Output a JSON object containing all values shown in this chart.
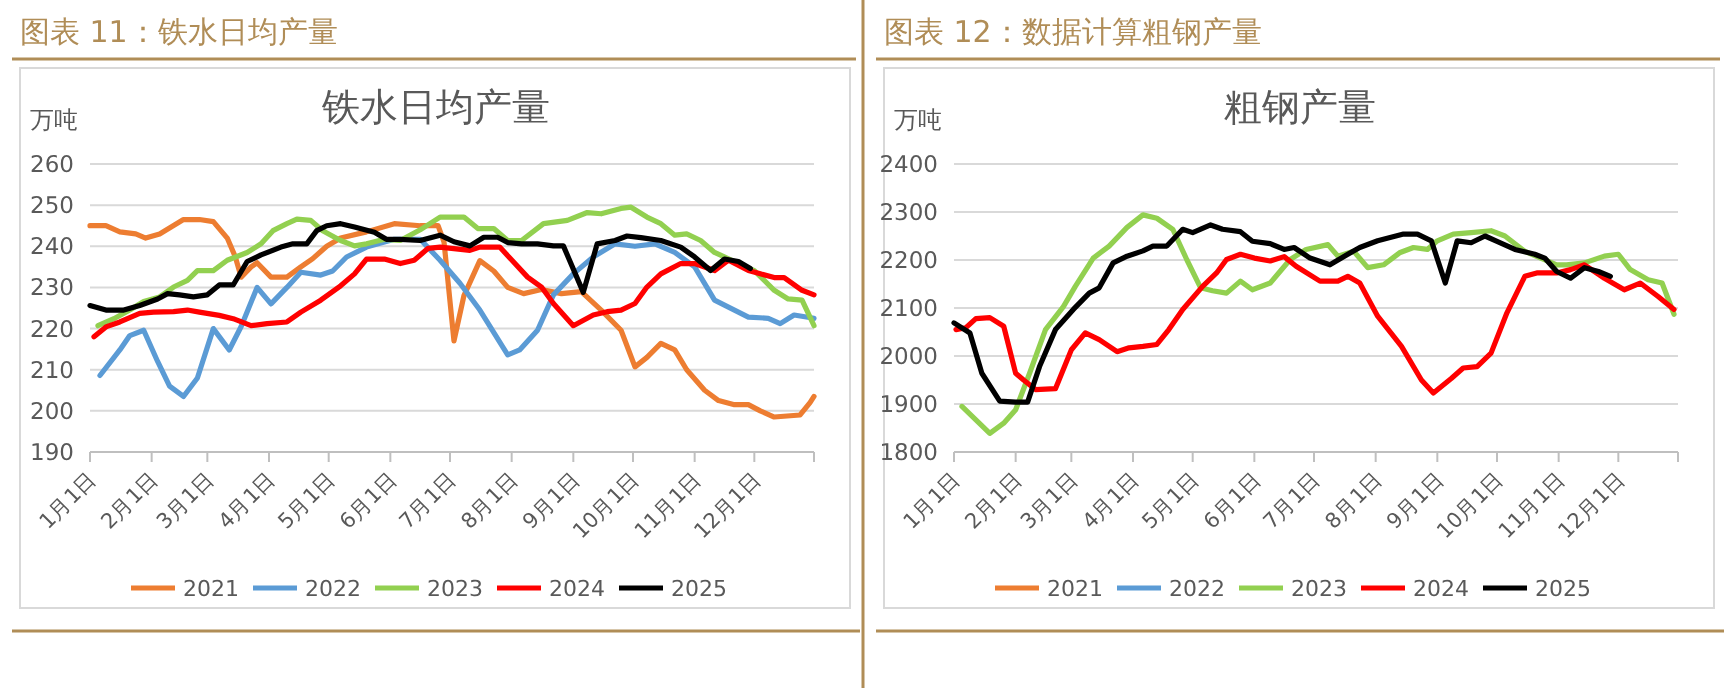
{
  "chart_data": [
    {
      "type": "line",
      "title": "图表 11：铁水日均产量",
      "subtitle": "铁水日均产量",
      "ylabel": "万吨",
      "xlim": [
        "--01-01",
        "--12-31"
      ],
      "xticks": [
        {
          "value": "--01-01",
          "label": "1月1日"
        },
        {
          "value": "--02-01",
          "label": "2月1日"
        },
        {
          "value": "--03-01",
          "label": "3月1日"
        },
        {
          "value": "--04-01",
          "label": "4月1日"
        },
        {
          "value": "--05-01",
          "label": "5月1日"
        },
        {
          "value": "--06-01",
          "label": "6月1日"
        },
        {
          "value": "--07-01",
          "label": "7月1日"
        },
        {
          "value": "--08-01",
          "label": "8月1日"
        },
        {
          "value": "--09-01",
          "label": "9月1日"
        },
        {
          "value": "--10-01",
          "label": "10月1日"
        },
        {
          "value": "--11-01",
          "label": "11月1日"
        },
        {
          "value": "--12-01",
          "label": "12月1日"
        }
      ],
      "ylim": [
        190,
        260
      ],
      "yticks": [
        190,
        200,
        210,
        220,
        230,
        240,
        250,
        260
      ],
      "grid": "y",
      "legend": "bottom",
      "marker": "none",
      "line_style": "solid",
      "series": [
        {
          "name": "2021",
          "color": "#ed7d31",
          "x": [
            "--01-01",
            "--01-09",
            "--01-16",
            "--01-24",
            "--01-29",
            "--02-05",
            "--02-17",
            "--02-25",
            "--03-04",
            "--03-11",
            "--03-15",
            "--03-18",
            "--03-23",
            "--03-26",
            "--04-02",
            "--04-10",
            "--04-17",
            "--04-23",
            "--04-30",
            "--05-07",
            "--05-20",
            "--06-03",
            "--06-16",
            "--06-25",
            "--06-28",
            "--07-03",
            "--07-08",
            "--07-16",
            "--07-23",
            "--07-30",
            "--08-07",
            "--08-16",
            "--08-26",
            "--09-05",
            "--09-15",
            "--09-25",
            "--10-02",
            "--10-08",
            "--10-15",
            "--10-22",
            "--10-28",
            "--11-06",
            "--11-13",
            "--11-21",
            "--11-28",
            "--12-04",
            "--12-11",
            "--12-24",
            "--12-29",
            "--12-31"
          ],
          "values": [
            245,
            245,
            243.5,
            243,
            242,
            243,
            246.5,
            246.5,
            246,
            242,
            237.5,
            232.5,
            235,
            236,
            232.5,
            232.5,
            235,
            237,
            240,
            242,
            243.5,
            245.5,
            245,
            245,
            241,
            217,
            228,
            236.5,
            234,
            230,
            228.5,
            229.5,
            228.5,
            229,
            224.5,
            219.6,
            210.7,
            213,
            216.4,
            214.8,
            210,
            205,
            202.5,
            201.5,
            201.5,
            200,
            198.5,
            199,
            202,
            203.5
          ]
        },
        {
          "name": "2022",
          "color": "#5b9bd5",
          "x": [
            "--01-06",
            "--01-16",
            "--01-21",
            "--01-28",
            "--02-04",
            "--02-10",
            "--02-17",
            "--02-24",
            "--03-04",
            "--03-12",
            "--03-18",
            "--03-26",
            "--04-02",
            "--04-10",
            "--04-17",
            "--04-27",
            "--05-03",
            "--05-10",
            "--05-20",
            "--06-03",
            "--06-16",
            "--06-26",
            "--07-06",
            "--07-16",
            "--07-30",
            "--08-05",
            "--08-14",
            "--08-22",
            "--09-01",
            "--09-11",
            "--09-22",
            "--10-02",
            "--10-12",
            "--10-22",
            "--11-01",
            "--11-11",
            "--11-21",
            "--11-28",
            "--12-08",
            "--12-14",
            "--12-21",
            "--12-31"
          ],
          "values": [
            208.6,
            214.8,
            218.3,
            219.6,
            212,
            206,
            203.5,
            208,
            220,
            214.8,
            220.5,
            230,
            226,
            230,
            233.7,
            233,
            234,
            237.4,
            239.8,
            241.7,
            241.7,
            236.6,
            231,
            224.5,
            213.6,
            214.8,
            219.6,
            228.2,
            233.3,
            237.4,
            240.6,
            240,
            240.6,
            238.5,
            235,
            226.9,
            224.5,
            222.8,
            222.5,
            221.2,
            223.3,
            222.5
          ]
        },
        {
          "name": "2023",
          "color": "#92d050",
          "x": [
            "--01-05",
            "--01-13",
            "--01-21",
            "--01-28",
            "--02-05",
            "--02-12",
            "--02-19",
            "--02-24",
            "--03-04",
            "--03-11",
            "--03-21",
            "--03-28",
            "--04-03",
            "--04-10",
            "--04-15",
            "--04-22",
            "--04-28",
            "--05-07",
            "--05-14",
            "--05-20",
            "--05-29",
            "--06-06",
            "--06-16",
            "--06-26",
            "--07-08",
            "--07-15",
            "--07-23",
            "--07-30",
            "--08-06",
            "--08-17",
            "--08-29",
            "--09-08",
            "--09-15",
            "--09-25",
            "--09-30",
            "--10-08",
            "--10-15",
            "--10-22",
            "--10-28",
            "--11-04",
            "--11-11",
            "--11-21",
            "--12-01",
            "--12-11",
            "--12-18",
            "--12-25",
            "--12-31"
          ],
          "values": [
            220.7,
            222.4,
            224.5,
            226.6,
            227.7,
            230.1,
            231.7,
            234.1,
            234.1,
            236.6,
            238.5,
            240.6,
            243.8,
            245.5,
            246.6,
            246.3,
            243.8,
            241.4,
            240.1,
            240.6,
            241.7,
            241.4,
            244,
            247.1,
            247.1,
            244.3,
            244.3,
            241.4,
            241.4,
            245.5,
            246.3,
            248.2,
            247.9,
            249.2,
            249.5,
            247.1,
            245.5,
            242.7,
            243,
            241.4,
            238.5,
            236.3,
            234.1,
            229.3,
            227.2,
            226.9,
            220.7
          ]
        },
        {
          "name": "2024",
          "color": "#ff0000",
          "x": [
            "--01-03",
            "--01-09",
            "--01-16",
            "--01-26",
            "--02-02",
            "--02-12",
            "--02-19",
            "--02-25",
            "--03-07",
            "--03-14",
            "--03-23",
            "--03-31",
            "--04-10",
            "--04-17",
            "--04-27",
            "--05-07",
            "--05-14",
            "--05-20",
            "--05-29",
            "--06-06",
            "--06-13",
            "--06-20",
            "--06-26",
            "--07-11",
            "--07-16",
            "--07-26",
            "--08-09",
            "--08-16",
            "--08-22",
            "--09-01",
            "--09-11",
            "--09-18",
            "--09-25",
            "--10-02",
            "--10-08",
            "--10-15",
            "--10-25",
            "--11-01",
            "--11-11",
            "--11-18",
            "--11-28",
            "--12-04",
            "--12-11",
            "--12-16",
            "--12-25",
            "--12-31"
          ],
          "values": [
            218,
            220.4,
            221.6,
            223.7,
            224,
            224.1,
            224.5,
            224,
            223.2,
            222.4,
            220.7,
            221.2,
            221.6,
            224,
            226.9,
            230.4,
            233.3,
            236.9,
            236.9,
            235.8,
            236.6,
            239.5,
            239.8,
            239,
            239.8,
            239.8,
            232.5,
            230.1,
            226.1,
            220.7,
            223.3,
            224.1,
            224.5,
            226.1,
            230.1,
            233.3,
            235.8,
            235.8,
            234.1,
            236.6,
            234.1,
            233.3,
            232.4,
            232.4,
            229.3,
            228.2
          ]
        },
        {
          "name": "2025",
          "color": "#000000",
          "x": [
            "--01-01",
            "--01-09",
            "--01-18",
            "--01-26",
            "--02-04",
            "--02-09",
            "--02-15",
            "--02-22",
            "--03-01",
            "--03-07",
            "--03-14",
            "--03-21",
            "--03-28",
            "--04-07",
            "--04-13",
            "--04-20",
            "--04-25",
            "--04-30",
            "--05-07",
            "--05-14",
            "--05-24",
            "--05-30",
            "--06-06",
            "--06-16",
            "--06-26",
            "--07-03",
            "--07-11",
            "--07-18",
            "--07-25",
            "--07-30",
            "--08-06",
            "--08-14",
            "--08-22",
            "--08-27",
            "--09-06",
            "--09-13",
            "--09-22",
            "--09-28",
            "--10-05",
            "--10-15",
            "--10-25",
            "--11-01",
            "--11-09",
            "--11-16",
            "--11-23",
            "--11-29"
          ],
          "values": [
            225.6,
            224.5,
            224.5,
            225.6,
            227.2,
            228.5,
            228.2,
            227.7,
            228.2,
            230.6,
            230.6,
            236.3,
            237.9,
            239.8,
            240.6,
            240.6,
            243.8,
            245,
            245.5,
            244.7,
            243.4,
            241.7,
            241.7,
            241.4,
            242.7,
            241.1,
            240.1,
            242.2,
            242.2,
            240.9,
            240.6,
            240.6,
            240.1,
            240.1,
            228.8,
            240.6,
            241.4,
            242.5,
            242.1,
            241.4,
            239.8,
            237.4,
            234.1,
            236.9,
            236.3,
            234.6
          ]
        }
      ]
    },
    {
      "type": "line",
      "title": "图表 12：数据计算粗钢产量",
      "subtitle": "粗钢产量",
      "ylabel": "万吨",
      "xlim": [
        "--01-01",
        "--12-31"
      ],
      "xticks": [
        {
          "value": "--01-01",
          "label": "1月1日"
        },
        {
          "value": "--02-01",
          "label": "2月1日"
        },
        {
          "value": "--03-01",
          "label": "3月1日"
        },
        {
          "value": "--04-01",
          "label": "4月1日"
        },
        {
          "value": "--05-01",
          "label": "5月1日"
        },
        {
          "value": "--06-01",
          "label": "6月1日"
        },
        {
          "value": "--07-01",
          "label": "7月1日"
        },
        {
          "value": "--08-01",
          "label": "8月1日"
        },
        {
          "value": "--09-01",
          "label": "9月1日"
        },
        {
          "value": "--10-01",
          "label": "10月1日"
        },
        {
          "value": "--11-01",
          "label": "11月1日"
        },
        {
          "value": "--12-01",
          "label": "12月1日"
        }
      ],
      "ylim": [
        1800,
        2400
      ],
      "yticks": [
        1800,
        1900,
        2000,
        2100,
        2200,
        2300,
        2400
      ],
      "grid": "y",
      "legend": "bottom",
      "marker": "none",
      "line_style": "solid",
      "series": [
        {
          "name": "2021",
          "color": "#ed7d31"
        },
        {
          "name": "2022",
          "color": "#5b9bd5"
        },
        {
          "name": "2023",
          "color": "#92d050",
          "x": [
            "--01-05",
            "--01-12",
            "--01-19",
            "--01-26",
            "--02-01",
            "--02-08",
            "--02-16",
            "--02-25",
            "--03-03",
            "--03-12",
            "--03-20",
            "--03-29",
            "--04-06",
            "--04-13",
            "--04-21",
            "--04-28",
            "--05-05",
            "--05-11",
            "--05-18",
            "--05-25",
            "--05-31",
            "--06-09",
            "--06-19",
            "--06-27",
            "--07-08",
            "--07-13",
            "--07-21",
            "--07-28",
            "--08-05",
            "--08-13",
            "--08-20",
            "--08-27",
            "--09-01",
            "--09-09",
            "--09-18",
            "--09-28",
            "--10-05",
            "--10-15",
            "--10-23",
            "--10-31",
            "--11-05",
            "--11-14",
            "--11-24",
            "--12-01",
            "--12-07",
            "--12-16",
            "--12-23",
            "--12-29"
          ],
          "values": [
            1895,
            1867,
            1839,
            1860,
            1888,
            1964,
            2055,
            2103,
            2145,
            2204,
            2229,
            2268,
            2294,
            2287,
            2264,
            2201,
            2142,
            2136,
            2131,
            2156,
            2138,
            2152,
            2201,
            2222,
            2232,
            2208,
            2218,
            2184,
            2190,
            2215,
            2226,
            2222,
            2240,
            2254,
            2257,
            2261,
            2250,
            2218,
            2204,
            2190,
            2190,
            2194,
            2208,
            2212,
            2180,
            2159,
            2152,
            2087
          ]
        },
        {
          "name": "2024",
          "color": "#ff0000",
          "x": [
            "--01-02",
            "--01-07",
            "--01-12",
            "--01-19",
            "--01-26",
            "--02-01",
            "--02-05",
            "--02-11",
            "--02-21",
            "--03-01",
            "--03-08",
            "--03-15",
            "--03-24",
            "--03-30",
            "--04-06",
            "--04-13",
            "--04-19",
            "--04-26",
            "--05-06",
            "--05-13",
            "--05-18",
            "--05-25",
            "--06-01",
            "--06-09",
            "--06-16",
            "--06-22",
            "--07-04",
            "--07-13",
            "--07-18",
            "--07-24",
            "--08-02",
            "--08-14",
            "--08-24",
            "--08-30",
            "--09-08",
            "--09-14",
            "--09-21",
            "--09-28",
            "--10-06",
            "--10-15",
            "--10-21",
            "--10-31",
            "--11-07",
            "--11-14",
            "--11-24",
            "--12-04",
            "--12-12",
            "--12-21",
            "--12-29"
          ],
          "values": [
            2055,
            2059,
            2078,
            2080,
            2062,
            1964,
            1950,
            1930,
            1932,
            2013,
            2048,
            2034,
            2009,
            2017,
            2020,
            2024,
            2055,
            2097,
            2145,
            2173,
            2201,
            2212,
            2204,
            2198,
            2207,
            2187,
            2156,
            2156,
            2166,
            2152,
            2083,
            2020,
            1950,
            1923,
            1953,
            1975,
            1978,
            2006,
            2090,
            2166,
            2173,
            2173,
            2180,
            2190,
            2162,
            2138,
            2152,
            2124,
            2097
          ]
        },
        {
          "name": "2025",
          "color": "#000000",
          "x": [
            "--01-01",
            "--01-09",
            "--01-15",
            "--01-24",
            "--02-01",
            "--02-07",
            "--02-13",
            "--02-21",
            "--03-02",
            "--03-10",
            "--03-15",
            "--03-22",
            "--03-29",
            "--04-06",
            "--04-11",
            "--04-18",
            "--04-26",
            "--05-01",
            "--05-10",
            "--05-16",
            "--05-25",
            "--05-31",
            "--06-09",
            "--06-16",
            "--06-21",
            "--06-29",
            "--07-09",
            "--07-18",
            "--07-24",
            "--08-02",
            "--08-15",
            "--08-22",
            "--08-29",
            "--09-05",
            "--09-11",
            "--09-18",
            "--09-25",
            "--10-01",
            "--10-10",
            "--10-20",
            "--10-25",
            "--10-31",
            "--11-07",
            "--11-14",
            "--11-21",
            "--11-27"
          ],
          "values": [
            2069,
            2048,
            1964,
            1906,
            1904,
            1904,
            1978,
            2055,
            2097,
            2131,
            2142,
            2194,
            2208,
            2219,
            2229,
            2229,
            2264,
            2257,
            2273,
            2264,
            2259,
            2239,
            2234,
            2222,
            2226,
            2204,
            2190,
            2212,
            2226,
            2240,
            2254,
            2254,
            2240,
            2152,
            2240,
            2236,
            2250,
            2239,
            2222,
            2212,
            2204,
            2176,
            2162,
            2184,
            2176,
            2166
          ]
        }
      ]
    }
  ]
}
